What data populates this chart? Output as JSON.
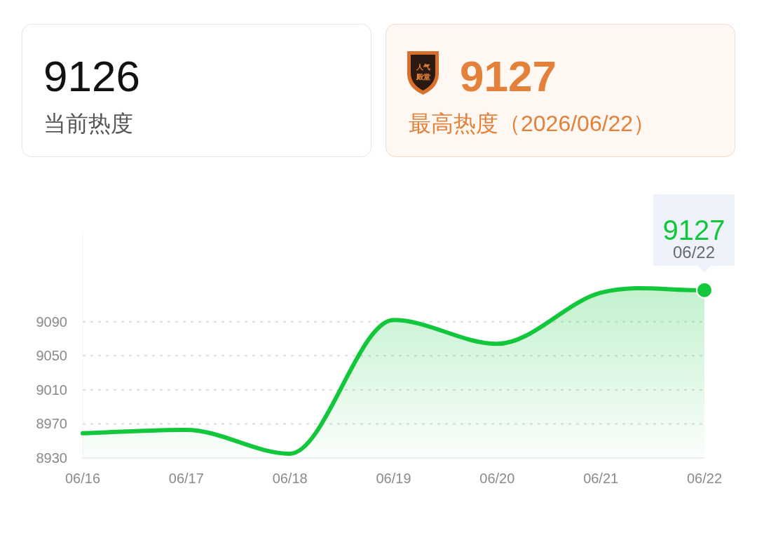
{
  "chart_data": [
    {
      "type": "other",
      "annotations": [
        "9126",
        "当前热度"
      ]
    },
    {
      "type": "other",
      "annotations": [
        "人气",
        "殿堂",
        "9127",
        "最高热度（2026/06/22）"
      ]
    },
    {
      "type": "area",
      "categories": [
        "06/16",
        "06/17",
        "06/18",
        "06/19",
        "06/20",
        "06/21",
        "06/22"
      ],
      "series": [
        {
          "color": "#12c73b",
          "values": [
            8959,
            8963,
            8935,
            9092,
            9064,
            9124,
            9127
          ]
        }
      ],
      "ylim": [
        8930,
        9196
      ],
      "yticks": [
        8930,
        8970,
        9010,
        9050,
        9090
      ],
      "grid": "y",
      "annotations": [
        {
          "text": "9127",
          "x": "06/22",
          "y": 9127
        },
        "06/22"
      ]
    }
  ]
}
